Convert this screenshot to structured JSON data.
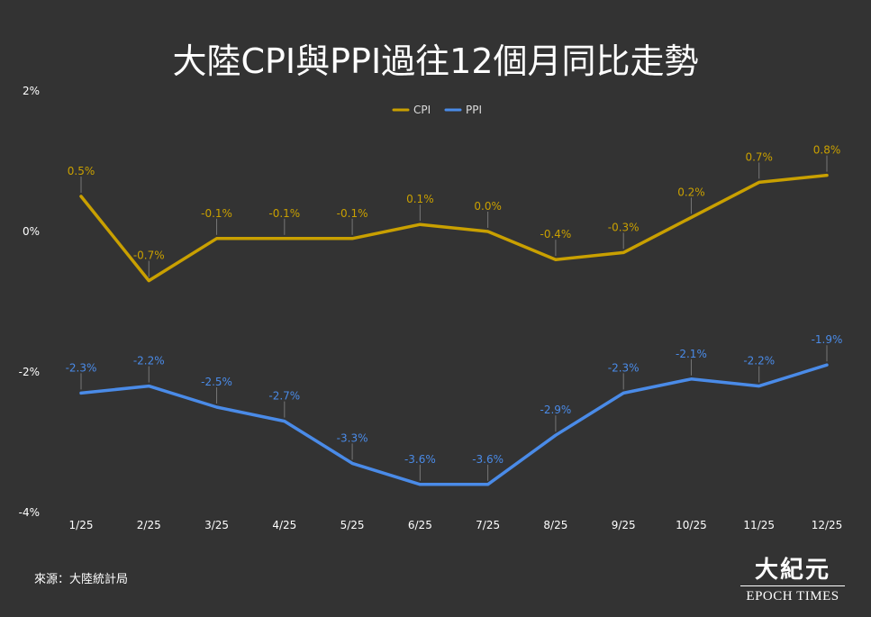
{
  "title": "大陸CPI與PPI過往12個月同比走勢",
  "source": "來源：大陸統計局",
  "logo": {
    "chinese": "大紀元",
    "english": "EPOCH TIMES"
  },
  "colors": {
    "cpi": "#c9a000",
    "ppi": "#4a8be8",
    "background": "#333333",
    "leader": "#777777"
  },
  "chart_data": {
    "type": "line",
    "categories": [
      "1/25",
      "2/25",
      "3/25",
      "4/25",
      "5/25",
      "6/25",
      "7/25",
      "8/25",
      "9/25",
      "10/25",
      "11/25",
      "12/25"
    ],
    "series": [
      {
        "name": "CPI",
        "values": [
          0.5,
          -0.7,
          -0.1,
          -0.1,
          -0.1,
          0.1,
          0.0,
          -0.4,
          -0.3,
          0.2,
          0.7,
          0.8
        ],
        "labels": [
          "0.5%",
          "-0.7%",
          "-0.1%",
          "-0.1%",
          "-0.1%",
          "0.1%",
          "0.0%",
          "-0.4%",
          "-0.3%",
          "0.2%",
          "0.7%",
          "0.8%"
        ]
      },
      {
        "name": "PPI",
        "values": [
          -2.3,
          -2.2,
          -2.5,
          -2.7,
          -3.3,
          -3.6,
          -3.6,
          -2.9,
          -2.3,
          -2.1,
          -2.2,
          -1.9
        ],
        "labels": [
          "-2.3%",
          "-2.2%",
          "-2.5%",
          "-2.7%",
          "-3.3%",
          "-3.6%",
          "-3.6%",
          "-2.9%",
          "-2.3%",
          "-2.1%",
          "-2.2%",
          "-1.9%"
        ]
      }
    ],
    "yticks": [
      2,
      0,
      -2,
      -4
    ],
    "ytick_labels": [
      "2%",
      "0%",
      "-2%",
      "-4%"
    ],
    "ylim": [
      -4,
      2
    ],
    "grid": false,
    "legend": "top-center"
  }
}
